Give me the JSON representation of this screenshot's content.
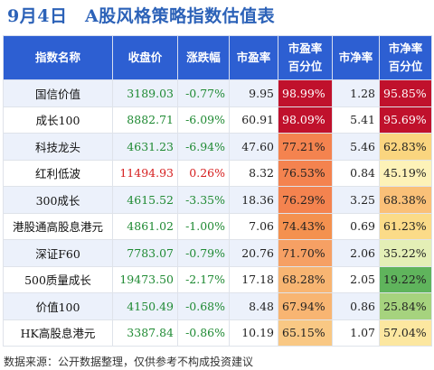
{
  "title": "9月4日　A股风格策略指数估值表",
  "headers": {
    "name": "指数名称",
    "close": "收盘价",
    "change": "涨跌幅",
    "pe": "市盈率",
    "pe_pct_l1": "市盈率",
    "pe_pct_l2": "百分位",
    "pb": "市净率",
    "pb_pct_l1": "市净率",
    "pb_pct_l2": "百分位"
  },
  "rows": [
    {
      "name": "国信价值",
      "close": "3189.03",
      "change": "-0.77%",
      "pe": "9.95",
      "pe_pct": "98.99%",
      "pb": "1.28",
      "pb_pct": "95.85%",
      "close_color": "#1f8a33",
      "change_color": "#1f8a33",
      "pe_pct_bg": "#c0112c",
      "pe_pct_fg": "#ffffff",
      "pb_pct_bg": "#c0112c",
      "pb_pct_fg": "#ffffff"
    },
    {
      "name": "成长100",
      "close": "8882.71",
      "change": "-6.09%",
      "pe": "60.91",
      "pe_pct": "98.09%",
      "pb": "5.41",
      "pb_pct": "95.69%",
      "close_color": "#1f8a33",
      "change_color": "#1f8a33",
      "pe_pct_bg": "#c0112c",
      "pe_pct_fg": "#ffffff",
      "pb_pct_bg": "#c0112c",
      "pb_pct_fg": "#ffffff"
    },
    {
      "name": "科技龙头",
      "close": "4631.23",
      "change": "-6.94%",
      "pe": "47.60",
      "pe_pct": "77.21%",
      "pb": "5.46",
      "pb_pct": "62.83%",
      "close_color": "#1f8a33",
      "change_color": "#1f8a33",
      "pe_pct_bg": "#f4834f",
      "pe_pct_fg": "#222222",
      "pb_pct_bg": "#fad57f",
      "pb_pct_fg": "#222222"
    },
    {
      "name": "红利低波",
      "close": "11494.93",
      "change": "0.26%",
      "pe": "8.32",
      "pe_pct": "76.53%",
      "pb": "0.84",
      "pb_pct": "45.19%",
      "close_color": "#d62020",
      "change_color": "#d62020",
      "pe_pct_bg": "#f4834f",
      "pe_pct_fg": "#222222",
      "pb_pct_bg": "#fdf2b8",
      "pb_pct_fg": "#222222"
    },
    {
      "name": "300成长",
      "close": "4615.52",
      "change": "-3.35%",
      "pe": "18.36",
      "pe_pct": "76.29%",
      "pb": "3.25",
      "pb_pct": "68.38%",
      "close_color": "#1f8a33",
      "change_color": "#1f8a33",
      "pe_pct_bg": "#f4834f",
      "pe_pct_fg": "#222222",
      "pb_pct_bg": "#fac078",
      "pb_pct_fg": "#222222"
    },
    {
      "name": "港股通高股息港元",
      "close": "4861.02",
      "change": "-1.00%",
      "pe": "7.06",
      "pe_pct": "74.43%",
      "pb": "0.69",
      "pb_pct": "61.23%",
      "close_color": "#1f8a33",
      "change_color": "#1f8a33",
      "pe_pct_bg": "#f4914f",
      "pe_pct_fg": "#222222",
      "pb_pct_bg": "#fbdb88",
      "pb_pct_fg": "#222222"
    },
    {
      "name": "深证F60",
      "close": "7783.07",
      "change": "-0.79%",
      "pe": "20.76",
      "pe_pct": "71.70%",
      "pb": "2.06",
      "pb_pct": "35.22%",
      "close_color": "#1f8a33",
      "change_color": "#1f8a33",
      "pe_pct_bg": "#f6a064",
      "pe_pct_fg": "#222222",
      "pb_pct_bg": "#e4efb6",
      "pb_pct_fg": "#222222"
    },
    {
      "name": "500质量成长",
      "close": "19473.50",
      "change": "-2.17%",
      "pe": "17.18",
      "pe_pct": "68.28%",
      "pb": "2.05",
      "pb_pct": "19.22%",
      "close_color": "#1f8a33",
      "change_color": "#1f8a33",
      "pe_pct_bg": "#f8b572",
      "pe_pct_fg": "#222222",
      "pb_pct_bg": "#5fb45c",
      "pb_pct_fg": "#222222"
    },
    {
      "name": "价值100",
      "close": "4150.49",
      "change": "-0.68%",
      "pe": "8.48",
      "pe_pct": "67.94%",
      "pb": "0.86",
      "pb_pct": "25.84%",
      "close_color": "#1f8a33",
      "change_color": "#1f8a33",
      "pe_pct_bg": "#f8b572",
      "pe_pct_fg": "#222222",
      "pb_pct_bg": "#a6d37e",
      "pb_pct_fg": "#222222"
    },
    {
      "name": "HK高股息港元",
      "close": "3387.84",
      "change": "-0.86%",
      "pe": "10.19",
      "pe_pct": "65.15%",
      "pb": "1.07",
      "pb_pct": "57.04%",
      "close_color": "#1f8a33",
      "change_color": "#1f8a33",
      "pe_pct_bg": "#f9c884",
      "pe_pct_fg": "#222222",
      "pb_pct_bg": "#fce7a0",
      "pb_pct_fg": "#222222"
    }
  ],
  "footer": "数据来源：公开数据整理，仅供参考不构成投资建议"
}
